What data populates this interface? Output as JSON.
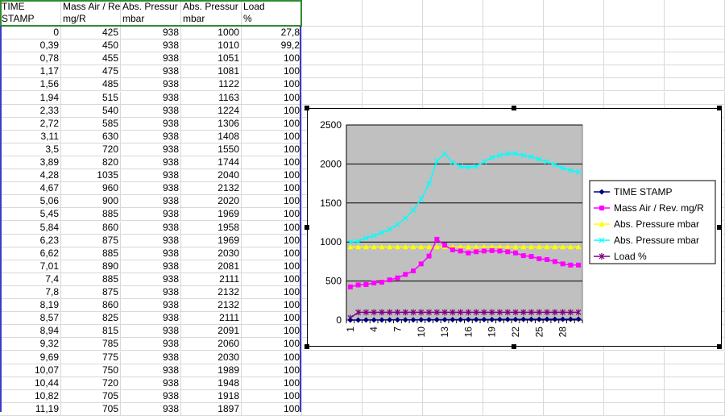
{
  "sheet": {
    "headers": [
      {
        "line1": "TIME",
        "line2": "STAMP"
      },
      {
        "line1": "Mass Air / Re",
        "line2": "mg/R"
      },
      {
        "line1": "Abs. Pressur",
        "line2": "mbar"
      },
      {
        "line1": "Abs. Pressur",
        "line2": "mbar"
      },
      {
        "line1": "Load",
        "line2": "%"
      }
    ],
    "rows": [
      [
        "0",
        "425",
        "938",
        "1000",
        "27,8"
      ],
      [
        "0,39",
        "450",
        "938",
        "1010",
        "99,2"
      ],
      [
        "0,78",
        "455",
        "938",
        "1051",
        "100"
      ],
      [
        "1,17",
        "475",
        "938",
        "1081",
        "100"
      ],
      [
        "1,56",
        "485",
        "938",
        "1122",
        "100"
      ],
      [
        "1,94",
        "515",
        "938",
        "1163",
        "100"
      ],
      [
        "2,33",
        "540",
        "938",
        "1224",
        "100"
      ],
      [
        "2,72",
        "585",
        "938",
        "1306",
        "100"
      ],
      [
        "3,11",
        "630",
        "938",
        "1408",
        "100"
      ],
      [
        "3,5",
        "720",
        "938",
        "1550",
        "100"
      ],
      [
        "3,89",
        "820",
        "938",
        "1744",
        "100"
      ],
      [
        "4,28",
        "1035",
        "938",
        "2040",
        "100"
      ],
      [
        "4,67",
        "960",
        "938",
        "2132",
        "100"
      ],
      [
        "5,06",
        "900",
        "938",
        "2020",
        "100"
      ],
      [
        "5,45",
        "885",
        "938",
        "1969",
        "100"
      ],
      [
        "5,84",
        "860",
        "938",
        "1958",
        "100"
      ],
      [
        "6,23",
        "875",
        "938",
        "1969",
        "100"
      ],
      [
        "6,62",
        "885",
        "938",
        "2030",
        "100"
      ],
      [
        "7,01",
        "890",
        "938",
        "2081",
        "100"
      ],
      [
        "7,4",
        "885",
        "938",
        "2111",
        "100"
      ],
      [
        "7,8",
        "875",
        "938",
        "2132",
        "100"
      ],
      [
        "8,19",
        "860",
        "938",
        "2132",
        "100"
      ],
      [
        "8,57",
        "825",
        "938",
        "2111",
        "100"
      ],
      [
        "8,94",
        "815",
        "938",
        "2091",
        "100"
      ],
      [
        "9,32",
        "785",
        "938",
        "2060",
        "100"
      ],
      [
        "9,69",
        "775",
        "938",
        "2030",
        "100"
      ],
      [
        "10,07",
        "750",
        "938",
        "1989",
        "100"
      ],
      [
        "10,44",
        "720",
        "938",
        "1948",
        "100"
      ],
      [
        "10,82",
        "705",
        "938",
        "1918",
        "100"
      ],
      [
        "11,19",
        "705",
        "938",
        "1897",
        "100"
      ]
    ]
  },
  "chart_data": {
    "type": "line",
    "categories": [
      "1",
      "2",
      "3",
      "4",
      "5",
      "6",
      "7",
      "8",
      "9",
      "10",
      "11",
      "12",
      "13",
      "14",
      "15",
      "16",
      "17",
      "18",
      "19",
      "20",
      "21",
      "22",
      "23",
      "24",
      "25",
      "26",
      "27",
      "28",
      "29",
      "30"
    ],
    "x_tick_labels": [
      "1",
      "4",
      "7",
      "10",
      "13",
      "16",
      "19",
      "22",
      "25",
      "28"
    ],
    "ylim": [
      0,
      2500
    ],
    "y_ticks": [
      "0",
      "500",
      "1000",
      "1500",
      "2000",
      "2500"
    ],
    "grid": "horizontal",
    "plot_area_color": "#c0c0c0",
    "legend_position": "right",
    "series": [
      {
        "name": "TIME STAMP",
        "color": "#000080",
        "marker": "diamond",
        "values": [
          0,
          0.39,
          0.78,
          1.17,
          1.56,
          1.94,
          2.33,
          2.72,
          3.11,
          3.5,
          3.89,
          4.28,
          4.67,
          5.06,
          5.45,
          5.84,
          6.23,
          6.62,
          7.01,
          7.4,
          7.8,
          8.19,
          8.57,
          8.94,
          9.32,
          9.69,
          10.07,
          10.44,
          10.82,
          11.19
        ]
      },
      {
        "name": "Mass Air / Rev.  mg/R",
        "color": "#ff00ff",
        "marker": "square",
        "values": [
          425,
          450,
          455,
          475,
          485,
          515,
          540,
          585,
          630,
          720,
          820,
          1035,
          960,
          900,
          885,
          860,
          875,
          885,
          890,
          885,
          875,
          860,
          825,
          815,
          785,
          775,
          750,
          720,
          705,
          705
        ]
      },
      {
        "name": "Abs. Pressure  mbar",
        "color": "#ffff00",
        "marker": "triangle",
        "values": [
          938,
          938,
          938,
          938,
          938,
          938,
          938,
          938,
          938,
          938,
          938,
          938,
          938,
          938,
          938,
          938,
          938,
          938,
          938,
          938,
          938,
          938,
          938,
          938,
          938,
          938,
          938,
          938,
          938,
          938
        ]
      },
      {
        "name": "Abs. Pressure  mbar",
        "color": "#00ffff",
        "marker": "x",
        "values": [
          1000,
          1010,
          1051,
          1081,
          1122,
          1163,
          1224,
          1306,
          1408,
          1550,
          1744,
          2040,
          2132,
          2020,
          1969,
          1958,
          1969,
          2030,
          2081,
          2111,
          2132,
          2132,
          2111,
          2091,
          2060,
          2030,
          1989,
          1948,
          1918,
          1897
        ]
      },
      {
        "name": "Load %",
        "color": "#800080",
        "marker": "star",
        "values": [
          27.8,
          99.2,
          100,
          100,
          100,
          100,
          100,
          100,
          100,
          100,
          100,
          100,
          100,
          100,
          100,
          100,
          100,
          100,
          100,
          100,
          100,
          100,
          100,
          100,
          100,
          100,
          100,
          100,
          100,
          100
        ]
      }
    ]
  }
}
